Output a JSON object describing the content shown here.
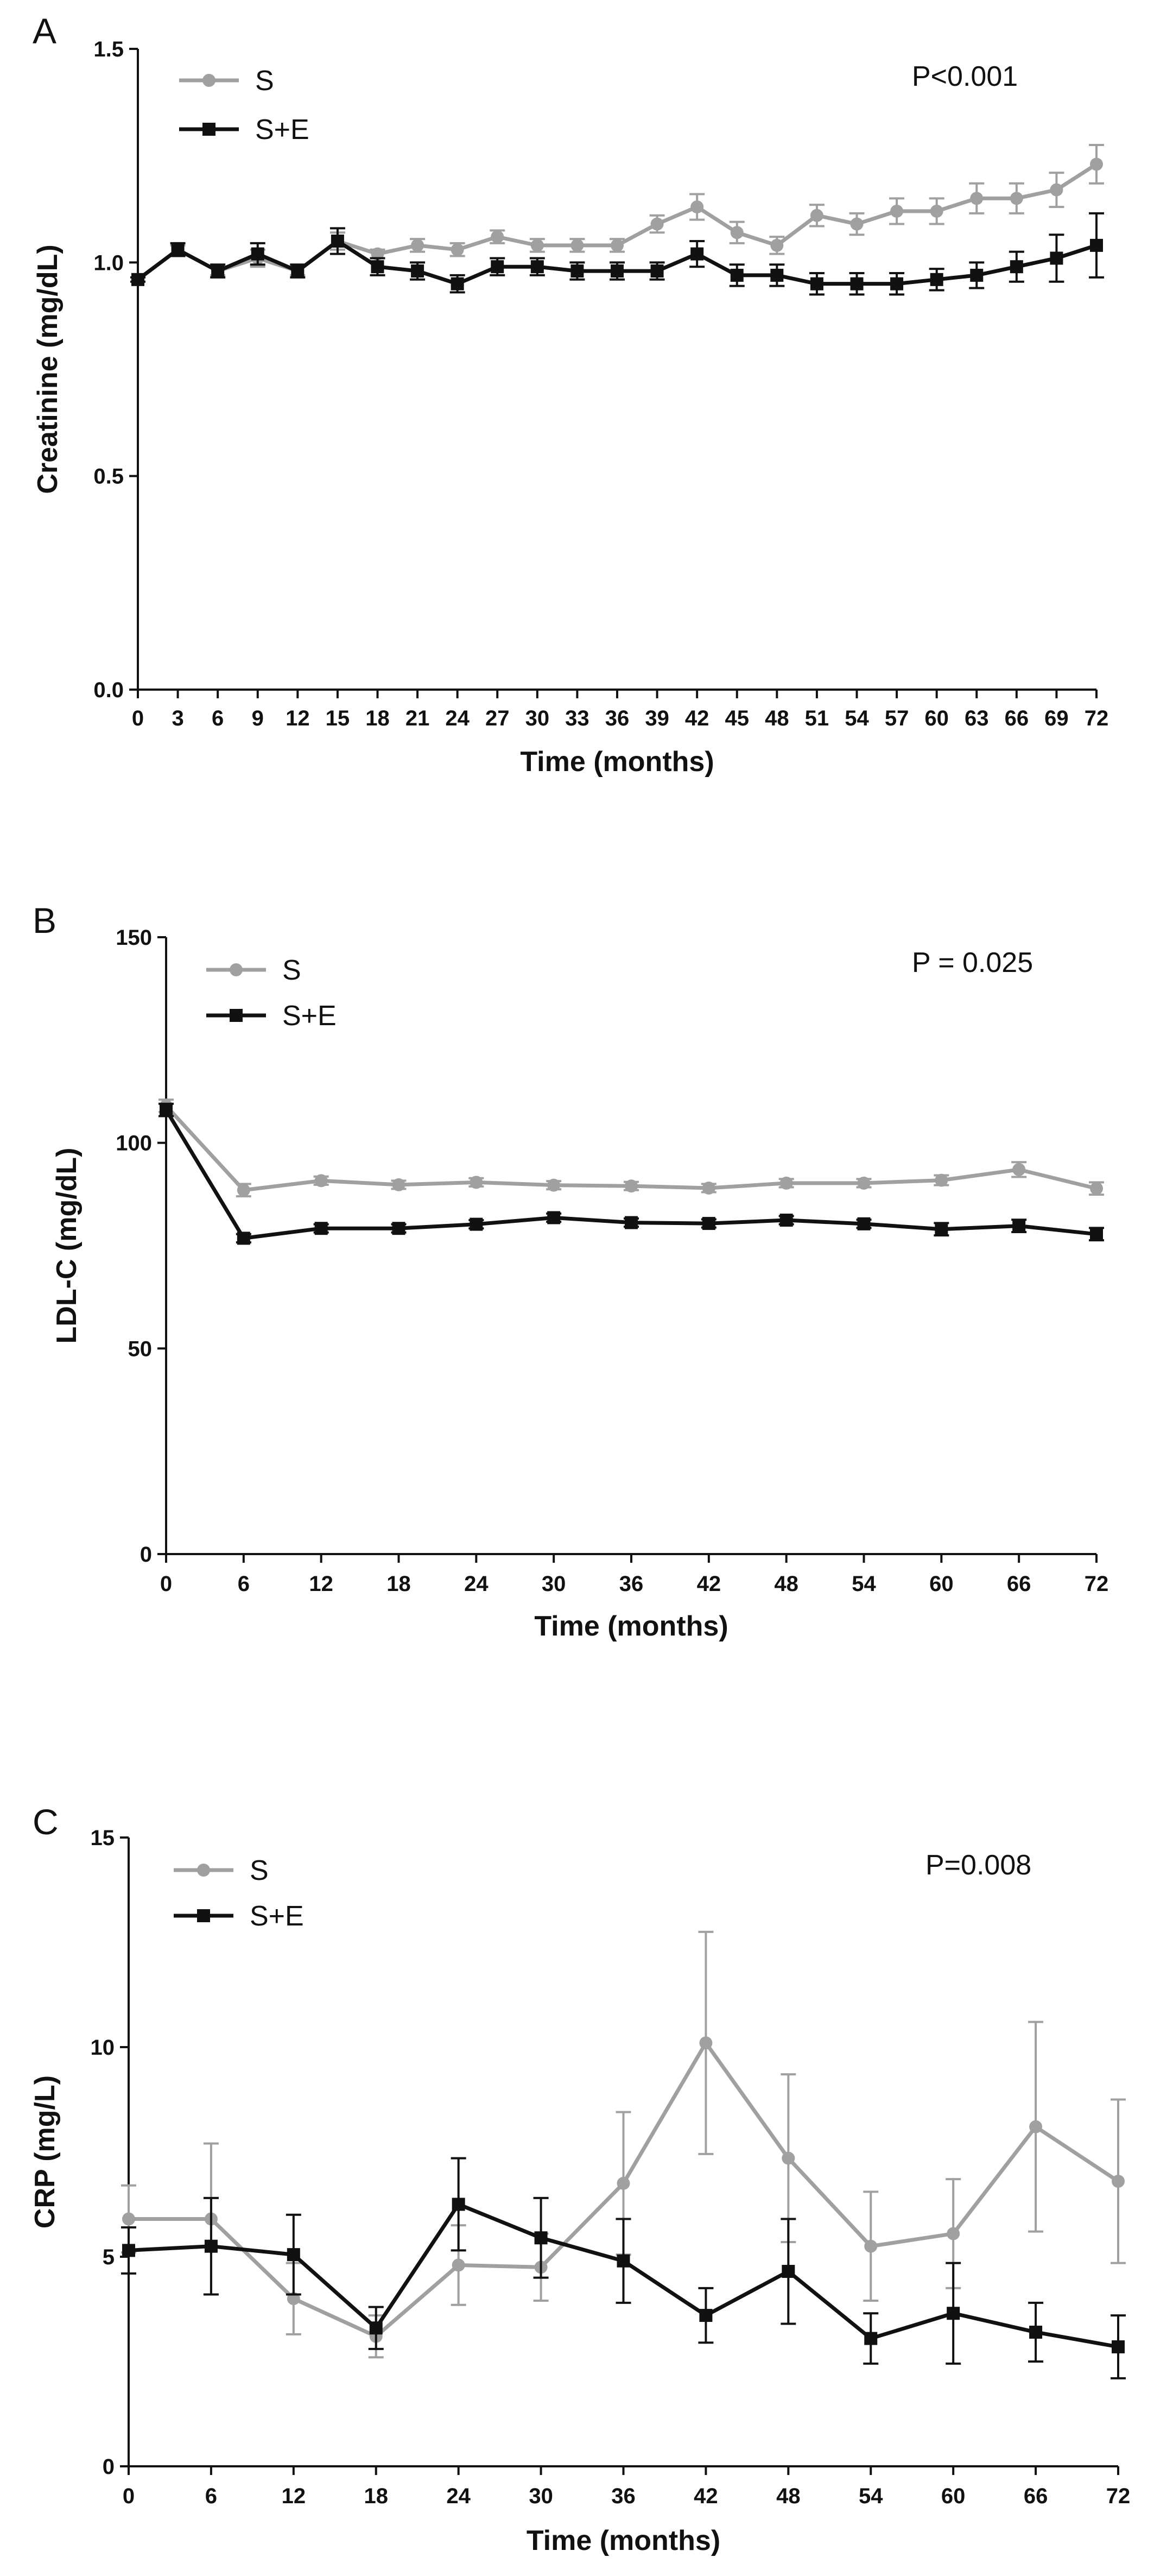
{
  "colors": {
    "S": "#a0a0a0",
    "SE": "#111111",
    "axis": "#111111"
  },
  "chart_data": [
    {
      "panel": "A",
      "type": "line",
      "ylabel": "Creatinine  (mg/dL)",
      "xlabel": "Time (months)",
      "pvalue": "P<0.001",
      "ylim": [
        0,
        1.5
      ],
      "yticks": [
        0,
        0.5,
        1.0,
        1.5
      ],
      "ytick_labels": [
        "0.0",
        "0.5",
        "1.0",
        "1.5"
      ],
      "xlim": [
        0,
        72
      ],
      "x": [
        0,
        3,
        6,
        9,
        12,
        15,
        18,
        21,
        24,
        27,
        30,
        33,
        36,
        39,
        42,
        45,
        48,
        51,
        54,
        57,
        60,
        63,
        66,
        69,
        72
      ],
      "xtick_labels": [
        "0",
        "3",
        "6",
        "9",
        "12",
        "15",
        "18",
        "21",
        "24",
        "27",
        "30",
        "33",
        "36",
        "39",
        "42",
        "45",
        "48",
        "51",
        "54",
        "57",
        "60",
        "63",
        "66",
        "69",
        "72"
      ],
      "series": [
        {
          "name": "S",
          "color_key": "S",
          "marker": "circle",
          "values": [
            0.96,
            1.03,
            0.98,
            1.01,
            0.98,
            1.05,
            1.02,
            1.04,
            1.03,
            1.06,
            1.04,
            1.04,
            1.04,
            1.09,
            1.13,
            1.07,
            1.04,
            1.11,
            1.09,
            1.12,
            1.12,
            1.15,
            1.15,
            1.17,
            1.23
          ],
          "errors": [
            0.005,
            0.01,
            0.01,
            0.02,
            0.01,
            0.02,
            0.01,
            0.015,
            0.015,
            0.015,
            0.015,
            0.015,
            0.015,
            0.02,
            0.03,
            0.025,
            0.02,
            0.025,
            0.025,
            0.03,
            0.03,
            0.035,
            0.035,
            0.04,
            0.045
          ]
        },
        {
          "name": "S+E",
          "color_key": "SE",
          "marker": "square",
          "values": [
            0.96,
            1.03,
            0.98,
            1.02,
            0.98,
            1.05,
            0.99,
            0.98,
            0.95,
            0.99,
            0.99,
            0.98,
            0.98,
            0.98,
            1.02,
            0.97,
            0.97,
            0.95,
            0.95,
            0.95,
            0.96,
            0.97,
            0.99,
            1.01,
            1.04
          ],
          "errors": [
            0.005,
            0.015,
            0.015,
            0.025,
            0.015,
            0.03,
            0.02,
            0.02,
            0.02,
            0.02,
            0.02,
            0.02,
            0.02,
            0.02,
            0.03,
            0.025,
            0.025,
            0.025,
            0.025,
            0.025,
            0.025,
            0.03,
            0.035,
            0.055,
            0.075
          ]
        }
      ]
    },
    {
      "panel": "B",
      "type": "line",
      "ylabel": "LDL-C  (mg/dL)",
      "xlabel": "Time (months)",
      "pvalue": "P = 0.025",
      "ylim": [
        0,
        150
      ],
      "yticks": [
        0,
        50,
        100,
        150
      ],
      "ytick_labels": [
        "0",
        "50",
        "100",
        "150"
      ],
      "xlim": [
        0,
        72
      ],
      "x": [
        0,
        6,
        12,
        18,
        24,
        30,
        36,
        42,
        48,
        54,
        60,
        66,
        72
      ],
      "xtick_labels": [
        "0",
        "6",
        "12",
        "18",
        "24",
        "30",
        "36",
        "42",
        "48",
        "54",
        "60",
        "66",
        "72"
      ],
      "series": [
        {
          "name": "S",
          "color_key": "S",
          "marker": "circle",
          "values": [
            109,
            88.5,
            90.8,
            89.8,
            90.4,
            89.7,
            89.5,
            89,
            90.2,
            90.2,
            90.9,
            93.5,
            88.9
          ],
          "errors": [
            1.5,
            1.5,
            1,
            1,
            1,
            1,
            1,
            1,
            1,
            1,
            1.2,
            1.8,
            1.5
          ]
        },
        {
          "name": "S+E",
          "color_key": "SE",
          "marker": "square",
          "values": [
            108,
            76.8,
            79.2,
            79.2,
            80.2,
            81.8,
            80.6,
            80.4,
            81.2,
            80.3,
            79,
            79.8,
            77.8
          ],
          "errors": [
            1.5,
            1,
            1,
            1,
            1,
            1,
            1,
            1,
            1,
            1,
            1.5,
            1.5,
            1.5
          ]
        }
      ]
    },
    {
      "panel": "C",
      "type": "line",
      "ylabel": "CRP (mg/L)",
      "xlabel": "Time (months)",
      "pvalue": "P=0.008",
      "ylim": [
        0,
        15
      ],
      "yticks": [
        0,
        5,
        10,
        15
      ],
      "ytick_labels": [
        "0",
        "5",
        "10",
        "15"
      ],
      "xlim": [
        0,
        72
      ],
      "x": [
        0,
        6,
        12,
        18,
        24,
        30,
        36,
        42,
        48,
        54,
        60,
        66,
        72
      ],
      "xtick_labels": [
        "0",
        "6",
        "12",
        "18",
        "24",
        "30",
        "36",
        "42",
        "48",
        "54",
        "60",
        "66",
        "72"
      ],
      "series": [
        {
          "name": "S",
          "color_key": "S",
          "marker": "circle",
          "values": [
            5.9,
            5.9,
            4.0,
            3.1,
            4.8,
            4.75,
            6.75,
            10.1,
            7.35,
            5.25,
            5.55,
            8.1,
            6.8
          ],
          "errors": [
            0.8,
            1.8,
            0.85,
            0.5,
            0.95,
            0.8,
            1.7,
            2.65,
            2.0,
            1.3,
            1.3,
            2.5,
            1.95
          ]
        },
        {
          "name": "S+E",
          "color_key": "SE",
          "marker": "square",
          "values": [
            5.15,
            5.25,
            5.05,
            3.3,
            6.25,
            5.45,
            4.9,
            3.6,
            4.65,
            3.05,
            3.65,
            3.2,
            2.85
          ],
          "errors": [
            0.55,
            1.15,
            0.95,
            0.5,
            1.1,
            0.95,
            1.0,
            0.65,
            1.25,
            0.6,
            1.2,
            0.7,
            0.75
          ]
        }
      ]
    }
  ]
}
